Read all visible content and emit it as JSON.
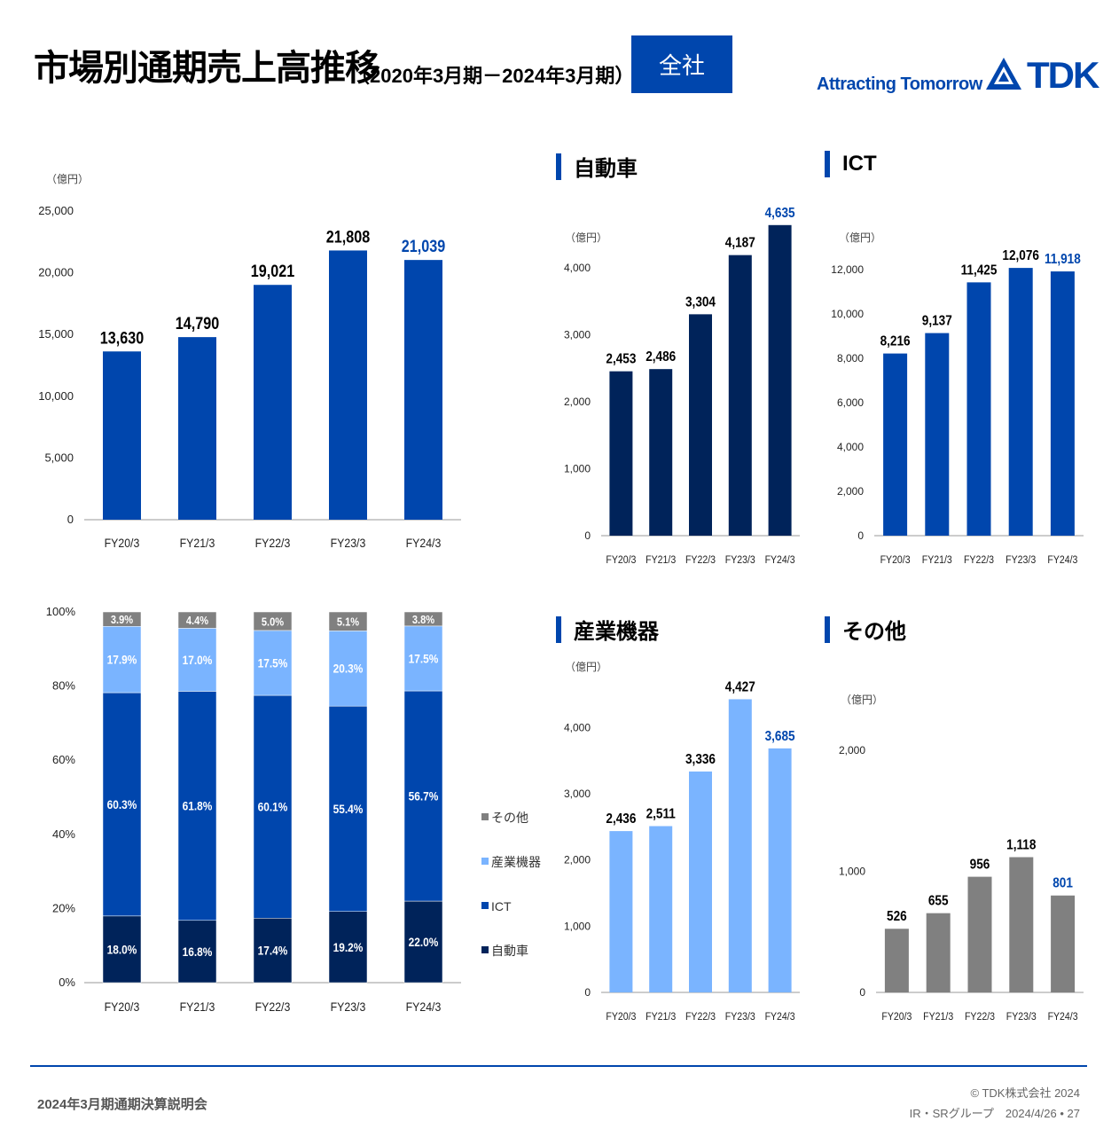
{
  "header": {
    "title": "市場別通期売上高推移",
    "subtitle": "（2020年3月期－2024年3月期）",
    "badge": "全社",
    "tagline": "Attracting Tomorrow",
    "logo_text": "TDK"
  },
  "colors": {
    "brand": "#0046ad",
    "auto": "#00235a",
    "ict": "#0046ad",
    "industrial": "#7ab4ff",
    "other": "#808080",
    "highlight_label": "#0046ad"
  },
  "sections": {
    "auto": "自動車",
    "ict": "ICT",
    "industrial": "産業機器",
    "other": "その他"
  },
  "chart_data": [
    {
      "id": "total",
      "type": "bar",
      "unit": "（億円）",
      "categories": [
        "FY20/3",
        "FY21/3",
        "FY22/3",
        "FY23/3",
        "FY24/3"
      ],
      "values": [
        13630,
        14790,
        19021,
        21808,
        21039
      ],
      "labels": [
        "13,630",
        "14,790",
        "19,021",
        "21,808",
        "21,039"
      ],
      "ylim": [
        0,
        25000
      ],
      "yticks": [
        0,
        5000,
        10000,
        15000,
        20000,
        25000
      ],
      "yticklabels": [
        "0",
        "5,000",
        "10,000",
        "15,000",
        "20,000",
        "25,000"
      ],
      "color": "#0046ad"
    },
    {
      "id": "auto",
      "type": "bar",
      "title": "自動車",
      "unit": "（億円）",
      "categories": [
        "FY20/3",
        "FY21/3",
        "FY22/3",
        "FY23/3",
        "FY24/3"
      ],
      "values": [
        2453,
        2486,
        3304,
        4187,
        4635
      ],
      "labels": [
        "2,453",
        "2,486",
        "3,304",
        "4,187",
        "4,635"
      ],
      "ylim": [
        0,
        4500
      ],
      "yticks": [
        0,
        1000,
        2000,
        3000,
        4000
      ],
      "yticklabels": [
        "0",
        "1,000",
        "2,000",
        "3,000",
        "4,000"
      ],
      "color": "#00235a"
    },
    {
      "id": "ict",
      "type": "bar",
      "title": "ICT",
      "unit": "（億円）",
      "categories": [
        "FY20/3",
        "FY21/3",
        "FY22/3",
        "FY23/3",
        "FY24/3"
      ],
      "values": [
        8216,
        9137,
        11425,
        12076,
        11918
      ],
      "labels": [
        "8,216",
        "9,137",
        "11,425",
        "12,076",
        "11,918"
      ],
      "ylim": [
        0,
        12000
      ],
      "yticks": [
        0,
        2000,
        4000,
        6000,
        8000,
        10000,
        12000
      ],
      "yticklabels": [
        "0",
        "2,000",
        "4,000",
        "6,000",
        "8,000",
        "10,000",
        "12,000"
      ],
      "color": "#0046ad"
    },
    {
      "id": "industrial",
      "type": "bar",
      "title": "産業機器",
      "unit": "（億円）",
      "categories": [
        "FY20/3",
        "FY21/3",
        "FY22/3",
        "FY23/3",
        "FY24/3"
      ],
      "values": [
        2436,
        2511,
        3336,
        4427,
        3685
      ],
      "labels": [
        "2,436",
        "2,511",
        "3,336",
        "4,427",
        "3,685"
      ],
      "ylim": [
        0,
        4500
      ],
      "yticks": [
        0,
        1000,
        2000,
        3000,
        4000
      ],
      "yticklabels": [
        "0",
        "1,000",
        "2,000",
        "3,000",
        "4,000"
      ],
      "color": "#7ab4ff"
    },
    {
      "id": "other",
      "type": "bar",
      "title": "その他",
      "unit": "（億円）",
      "categories": [
        "FY20/3",
        "FY21/3",
        "FY22/3",
        "FY23/3",
        "FY24/3"
      ],
      "values": [
        526,
        655,
        956,
        1118,
        801
      ],
      "labels": [
        "526",
        "655",
        "956",
        "1,118",
        "801"
      ],
      "ylim": [
        0,
        2500
      ],
      "yticks": [
        0,
        1000,
        2000
      ],
      "yticklabels": [
        "0",
        "1,000",
        "2,000"
      ],
      "color": "#808080"
    },
    {
      "id": "share",
      "type": "bar",
      "stacked": true,
      "categories": [
        "FY20/3",
        "FY21/3",
        "FY22/3",
        "FY23/3",
        "FY24/3"
      ],
      "ylim": [
        0,
        100
      ],
      "yticks": [
        0,
        20,
        40,
        60,
        80,
        100
      ],
      "yticklabels": [
        "0%",
        "20%",
        "40%",
        "60%",
        "80%",
        "100%"
      ],
      "legend_position": "right",
      "series": [
        {
          "name": "自動車",
          "values": [
            18.0,
            16.8,
            17.4,
            19.2,
            22.0
          ],
          "labels": [
            "18.0%",
            "16.8%",
            "17.4%",
            "19.2%",
            "22.0%"
          ],
          "color": "#00235a"
        },
        {
          "name": "ICT",
          "values": [
            60.3,
            61.8,
            60.1,
            55.4,
            56.7
          ],
          "labels": [
            "60.3%",
            "61.8%",
            "60.1%",
            "55.4%",
            "56.7%"
          ],
          "color": "#0046ad"
        },
        {
          "name": "産業機器",
          "values": [
            17.9,
            17.0,
            17.5,
            20.3,
            17.5
          ],
          "labels": [
            "17.9%",
            "17.0%",
            "17.5%",
            "20.3%",
            "17.5%"
          ],
          "color": "#7ab4ff"
        },
        {
          "name": "その他",
          "values": [
            3.9,
            4.4,
            5.0,
            5.1,
            3.8
          ],
          "labels": [
            "3.9%",
            "4.4%",
            "5.0%",
            "5.1%",
            "3.8%"
          ],
          "color": "#808080"
        }
      ],
      "legend_order": [
        "その他",
        "産業機器",
        "ICT",
        "自動車"
      ]
    }
  ],
  "footer": {
    "left": "2024年3月期通期決算説明会",
    "right_line1": "© TDK株式会社 2024",
    "right_line2": "IR・SRグループ　2024/4/26 • 27"
  }
}
